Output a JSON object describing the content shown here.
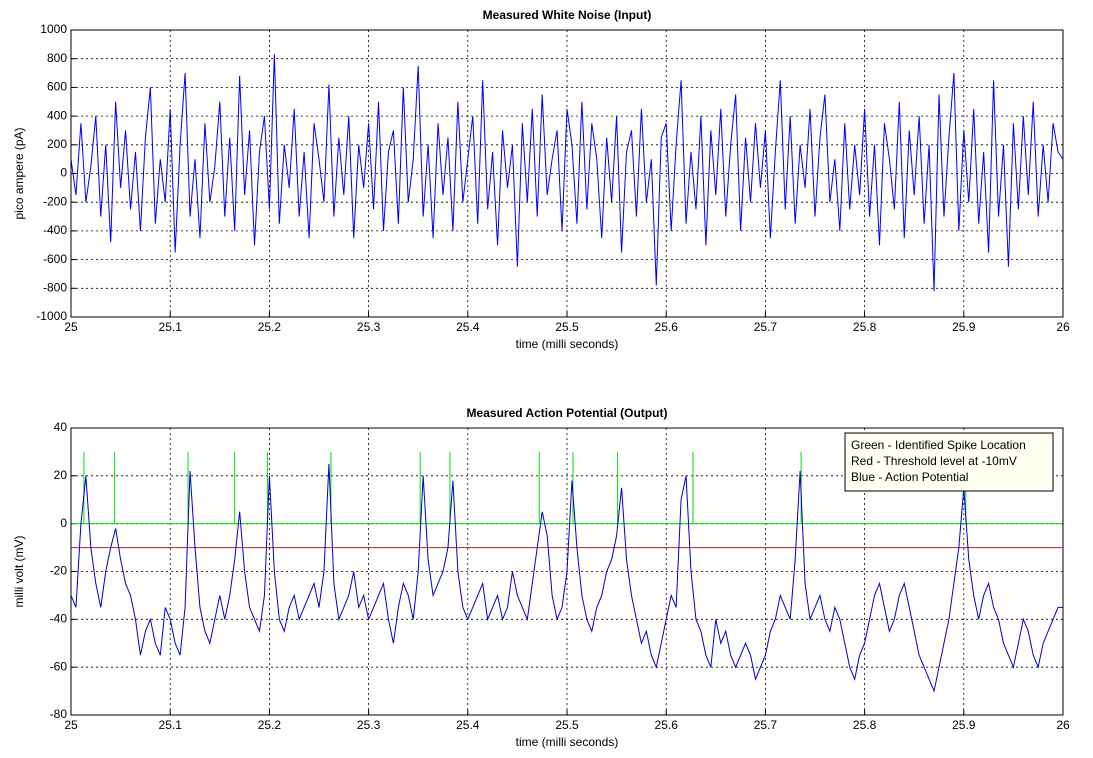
{
  "chart_data": [
    {
      "type": "line",
      "title": "Measured White Noise (Input)",
      "xlabel": "time (milli seconds)",
      "ylabel": "pico ampere (pA)",
      "xlim": [
        25,
        26
      ],
      "xticks": [
        25,
        25.1,
        25.2,
        25.3,
        25.4,
        25.5,
        25.6,
        25.7,
        25.8,
        25.9,
        26
      ],
      "ylim": [
        -1000,
        1000
      ],
      "yticks": [
        -1000,
        -800,
        -600,
        -400,
        -200,
        0,
        200,
        400,
        600,
        800,
        1000
      ],
      "grid": true,
      "x": [
        25,
        25.005,
        25.01,
        25.015,
        25.02,
        25.025,
        25.03,
        25.035,
        25.04,
        25.045,
        25.05,
        25.055,
        25.06,
        25.065,
        25.07,
        25.075,
        25.08,
        25.085,
        25.09,
        25.095,
        25.1,
        25.105,
        25.11,
        25.115,
        25.12,
        25.125,
        25.13,
        25.135,
        25.14,
        25.145,
        25.15,
        25.155,
        25.16,
        25.165,
        25.17,
        25.175,
        25.18,
        25.185,
        25.19,
        25.195,
        25.2,
        25.205,
        25.21,
        25.215,
        25.22,
        25.225,
        25.23,
        25.235,
        25.24,
        25.245,
        25.25,
        25.255,
        25.26,
        25.265,
        25.27,
        25.275,
        25.28,
        25.285,
        25.29,
        25.295,
        25.3,
        25.305,
        25.31,
        25.315,
        25.32,
        25.325,
        25.33,
        25.335,
        25.34,
        25.345,
        25.35,
        25.355,
        25.36,
        25.365,
        25.37,
        25.375,
        25.38,
        25.385,
        25.39,
        25.395,
        25.4,
        25.405,
        25.41,
        25.415,
        25.42,
        25.425,
        25.43,
        25.435,
        25.44,
        25.445,
        25.45,
        25.455,
        25.46,
        25.465,
        25.47,
        25.475,
        25.48,
        25.485,
        25.49,
        25.495,
        25.5,
        25.505,
        25.51,
        25.515,
        25.52,
        25.525,
        25.53,
        25.535,
        25.54,
        25.545,
        25.55,
        25.555,
        25.56,
        25.565,
        25.57,
        25.575,
        25.58,
        25.585,
        25.59,
        25.595,
        25.6,
        25.605,
        25.61,
        25.615,
        25.62,
        25.625,
        25.63,
        25.635,
        25.64,
        25.645,
        25.65,
        25.655,
        25.66,
        25.665,
        25.67,
        25.675,
        25.68,
        25.685,
        25.69,
        25.695,
        25.7,
        25.705,
        25.71,
        25.715,
        25.72,
        25.725,
        25.73,
        25.735,
        25.74,
        25.745,
        25.75,
        25.755,
        25.76,
        25.765,
        25.77,
        25.775,
        25.78,
        25.785,
        25.79,
        25.795,
        25.8,
        25.805,
        25.81,
        25.815,
        25.82,
        25.825,
        25.83,
        25.835,
        25.84,
        25.845,
        25.85,
        25.855,
        25.86,
        25.865,
        25.87,
        25.875,
        25.88,
        25.885,
        25.89,
        25.895,
        25.9,
        25.905,
        25.91,
        25.915,
        25.92,
        25.925,
        25.93,
        25.935,
        25.94,
        25.945,
        25.95,
        25.955,
        25.96,
        25.965,
        25.97,
        25.975,
        25.98,
        25.985,
        25.99,
        25.995,
        26
      ],
      "series": [
        {
          "color": "#0000ff",
          "values": [
            100,
            -150,
            350,
            -200,
            50,
            400,
            -300,
            200,
            -480,
            500,
            -100,
            300,
            -250,
            150,
            -400,
            250,
            600,
            -350,
            100,
            -200,
            450,
            -550,
            200,
            700,
            -300,
            100,
            -450,
            350,
            -200,
            50,
            500,
            -300,
            250,
            -400,
            680,
            -150,
            300,
            -500,
            150,
            400,
            -250,
            830,
            -350,
            200,
            -100,
            450,
            -300,
            150,
            -450,
            350,
            100,
            -200,
            620,
            -300,
            250,
            -150,
            400,
            -450,
            200,
            -100,
            350,
            -250,
            500,
            -400,
            150,
            300,
            -350,
            600,
            -200,
            100,
            750,
            -300,
            200,
            -450,
            350,
            -150,
            250,
            -400,
            500,
            -200,
            100,
            400,
            -350,
            650,
            -250,
            150,
            -500,
            300,
            -100,
            200,
            -650,
            350,
            -200,
            450,
            -300,
            550,
            -150,
            100,
            300,
            -400,
            450,
            200,
            -350,
            500,
            -250,
            350,
            100,
            -450,
            250,
            -200,
            400,
            -550,
            150,
            300,
            -300,
            450,
            -200,
            100,
            -780,
            250,
            350,
            -400,
            200,
            650,
            -350,
            150,
            -250,
            400,
            -500,
            300,
            -150,
            450,
            -300,
            200,
            550,
            -400,
            250,
            -200,
            350,
            -100,
            300,
            -450,
            150,
            650,
            -250,
            400,
            -350,
            200,
            -100,
            450,
            -300,
            250,
            550,
            -200,
            100,
            -400,
            350,
            -250,
            200,
            -150,
            450,
            -300,
            200,
            -500,
            350,
            100,
            -250,
            500,
            -450,
            300,
            -150,
            400,
            -350,
            200,
            -820,
            550,
            -300,
            250,
            700,
            -400,
            300,
            -200,
            450,
            -350,
            150,
            -550,
            650,
            -300,
            200,
            -650,
            350,
            -250,
            400,
            -150,
            500,
            -300,
            200,
            -200,
            350,
            150,
            100
          ]
        }
      ]
    },
    {
      "type": "line",
      "title": "Measured Action Potential (Output)",
      "xlabel": "time (milli seconds)",
      "ylabel": "milli volt (mV)",
      "xlim": [
        25,
        26
      ],
      "xticks": [
        25,
        25.1,
        25.2,
        25.3,
        25.4,
        25.5,
        25.6,
        25.7,
        25.8,
        25.9,
        26
      ],
      "ylim": [
        -80,
        40
      ],
      "yticks": [
        -80,
        -60,
        -40,
        -20,
        0,
        20,
        40
      ],
      "grid": true,
      "legend": "upper right",
      "x": [
        25,
        25.005,
        25.01,
        25.015,
        25.02,
        25.025,
        25.03,
        25.035,
        25.04,
        25.045,
        25.05,
        25.055,
        25.06,
        25.065,
        25.07,
        25.075,
        25.08,
        25.085,
        25.09,
        25.095,
        25.1,
        25.105,
        25.11,
        25.115,
        25.12,
        25.125,
        25.13,
        25.135,
        25.14,
        25.145,
        25.15,
        25.155,
        25.16,
        25.165,
        25.17,
        25.175,
        25.18,
        25.185,
        25.19,
        25.195,
        25.2,
        25.205,
        25.21,
        25.215,
        25.22,
        25.225,
        25.23,
        25.235,
        25.24,
        25.245,
        25.25,
        25.255,
        25.26,
        25.265,
        25.27,
        25.275,
        25.28,
        25.285,
        25.29,
        25.295,
        25.3,
        25.305,
        25.31,
        25.315,
        25.32,
        25.325,
        25.33,
        25.335,
        25.34,
        25.345,
        25.35,
        25.355,
        25.36,
        25.365,
        25.37,
        25.375,
        25.38,
        25.385,
        25.39,
        25.395,
        25.4,
        25.405,
        25.41,
        25.415,
        25.42,
        25.425,
        25.43,
        25.435,
        25.44,
        25.445,
        25.45,
        25.455,
        25.46,
        25.465,
        25.47,
        25.475,
        25.48,
        25.485,
        25.49,
        25.495,
        25.5,
        25.505,
        25.51,
        25.515,
        25.52,
        25.525,
        25.53,
        25.535,
        25.54,
        25.545,
        25.55,
        25.555,
        25.56,
        25.565,
        25.57,
        25.575,
        25.58,
        25.585,
        25.59,
        25.595,
        25.6,
        25.605,
        25.61,
        25.615,
        25.62,
        25.625,
        25.63,
        25.635,
        25.64,
        25.645,
        25.65,
        25.655,
        25.66,
        25.665,
        25.67,
        25.675,
        25.68,
        25.685,
        25.69,
        25.695,
        25.7,
        25.705,
        25.71,
        25.715,
        25.72,
        25.725,
        25.73,
        25.735,
        25.74,
        25.745,
        25.75,
        25.755,
        25.76,
        25.765,
        25.77,
        25.775,
        25.78,
        25.785,
        25.79,
        25.795,
        25.8,
        25.805,
        25.81,
        25.815,
        25.82,
        25.825,
        25.83,
        25.835,
        25.84,
        25.845,
        25.85,
        25.855,
        25.86,
        25.865,
        25.87,
        25.875,
        25.88,
        25.885,
        25.89,
        25.895,
        25.9,
        25.905,
        25.91,
        25.915,
        25.92,
        25.925,
        25.93,
        25.935,
        25.94,
        25.945,
        25.95,
        25.955,
        25.96,
        25.965,
        25.97,
        25.975,
        25.98,
        25.985,
        25.99,
        25.995,
        26
      ],
      "series": [
        {
          "name": "Green - Identified Spike Location",
          "color": "#00dd00",
          "kind": "spikes",
          "baseline": 0,
          "x": [
            25.013,
            25.044,
            25.118,
            25.165,
            25.198,
            25.262,
            25.352,
            25.382,
            25.472,
            25.506,
            25.551,
            25.627,
            25.736,
            25.902
          ],
          "values": [
            30,
            30,
            30,
            30,
            30,
            30,
            30,
            30,
            30,
            30,
            30,
            30,
            30,
            30
          ]
        },
        {
          "name": "Red - Threshold level at -10mV",
          "color": "#b22222",
          "x": [
            25,
            26
          ],
          "values": [
            -10,
            -10
          ]
        },
        {
          "name": "Blue - Action Potential",
          "color": "#0000cc",
          "values": [
            -30,
            -35,
            0,
            20,
            -10,
            -25,
            -35,
            -20,
            -10,
            -2,
            -15,
            -25,
            -30,
            -40,
            -55,
            -45,
            -40,
            -50,
            -55,
            -35,
            -40,
            -50,
            -55,
            -35,
            22,
            -10,
            -35,
            -45,
            -50,
            -40,
            -30,
            -40,
            -30,
            -15,
            5,
            -20,
            -35,
            -40,
            -45,
            -30,
            20,
            -20,
            -40,
            -45,
            -35,
            -30,
            -40,
            -35,
            -30,
            -25,
            -35,
            -20,
            25,
            -25,
            -40,
            -35,
            -30,
            -20,
            -35,
            -30,
            -40,
            -35,
            -30,
            -25,
            -40,
            -50,
            -35,
            -25,
            -30,
            -40,
            -20,
            20,
            -15,
            -30,
            -25,
            -20,
            -10,
            18,
            -20,
            -35,
            -40,
            -35,
            -30,
            -25,
            -40,
            -35,
            -30,
            -40,
            -35,
            -20,
            -30,
            -35,
            -40,
            -25,
            -10,
            5,
            -5,
            -30,
            -40,
            -35,
            -20,
            18,
            -10,
            -30,
            -40,
            -45,
            -35,
            -30,
            -20,
            -15,
            -5,
            15,
            -15,
            -30,
            -40,
            -50,
            -45,
            -55,
            -60,
            -50,
            -40,
            -30,
            -35,
            10,
            20,
            -20,
            -40,
            -45,
            -55,
            -60,
            -40,
            -50,
            -45,
            -55,
            -60,
            -55,
            -50,
            -55,
            -65,
            -60,
            -55,
            -45,
            -40,
            -30,
            -35,
            -40,
            -15,
            22,
            -25,
            -40,
            -35,
            -30,
            -40,
            -45,
            -35,
            -40,
            -50,
            -60,
            -65,
            -55,
            -50,
            -40,
            -30,
            -25,
            -35,
            -45,
            -40,
            -30,
            -25,
            -35,
            -45,
            -55,
            -60,
            -65,
            -70,
            -60,
            -50,
            -40,
            -25,
            -10,
            15,
            -15,
            -30,
            -40,
            -30,
            -25,
            -35,
            -40,
            -50,
            -55,
            -60,
            -50,
            -40,
            -45,
            -55,
            -60,
            -50,
            -45,
            -40,
            -35,
            -35
          ]
        }
      ]
    }
  ]
}
